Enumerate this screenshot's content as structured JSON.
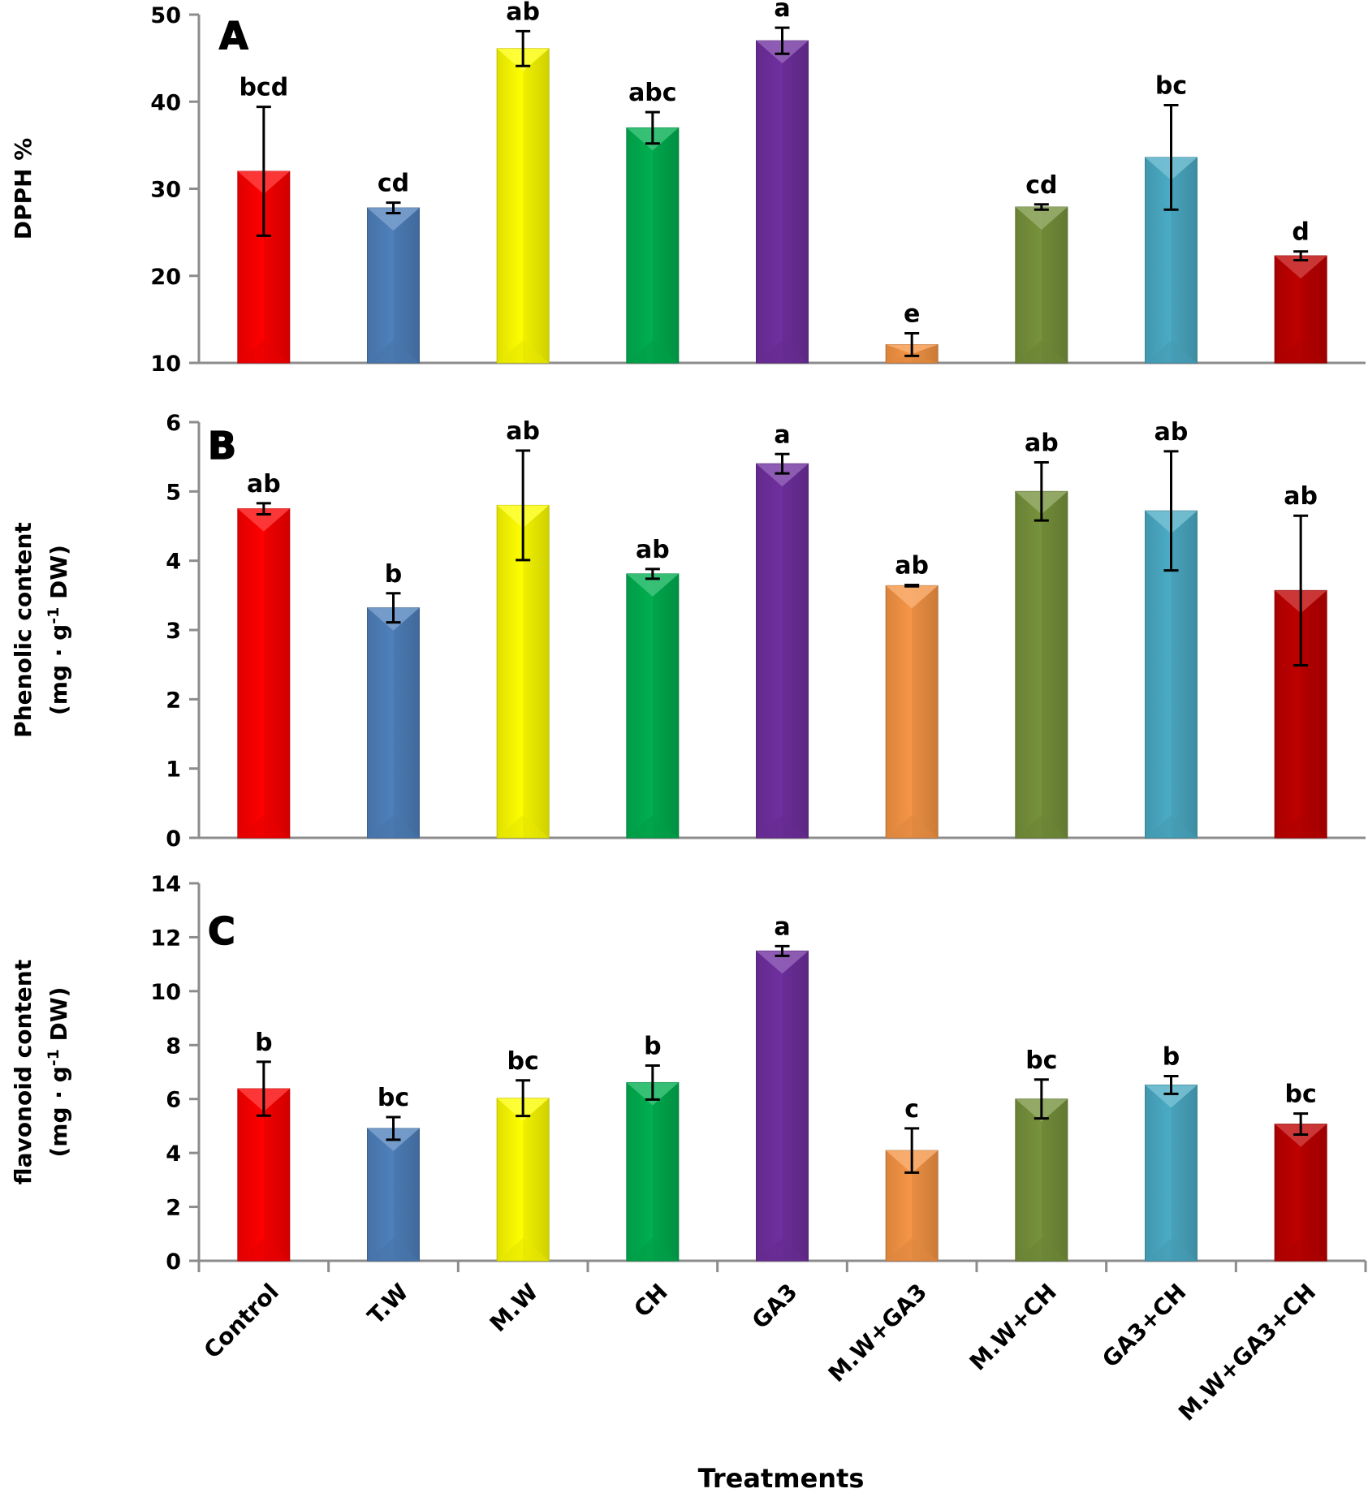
{
  "chart_data": {
    "type": "bar",
    "categories": [
      "Control",
      "T.W",
      "M.W",
      "CH",
      "GA3",
      "M.W+GA3",
      "M.W+CH",
      "GA3+CH",
      "M.W+GA3+CH"
    ],
    "category_colors": [
      "#ff0000",
      "#4f81bd",
      "#ffff00",
      "#00b050",
      "#7030a0",
      "#f79646",
      "#77933c",
      "#4bacc6",
      "#c00000"
    ],
    "xlabel": "Treatments",
    "panels": [
      {
        "letter": "A",
        "ylabel_lines": [
          "DPPH %"
        ],
        "ylim": [
          10,
          50
        ],
        "yticks": [
          10,
          20,
          30,
          40,
          50
        ],
        "grid": false,
        "values": [
          32.0,
          27.8,
          46.1,
          37.0,
          47.0,
          12.1,
          27.9,
          33.6,
          22.3
        ],
        "errors": [
          7.4,
          0.6,
          2.0,
          1.8,
          1.5,
          1.3,
          0.3,
          6.0,
          0.5
        ],
        "significance": [
          "bcd",
          "cd",
          "ab",
          "abc",
          "a",
          "e",
          "cd",
          "bc",
          "d"
        ]
      },
      {
        "letter": "B",
        "ylabel_lines": [
          "Phenolic content",
          "(mg · g⁻¹ DW)"
        ],
        "ylim": [
          0,
          6
        ],
        "yticks": [
          0,
          1,
          2,
          3,
          4,
          5,
          6
        ],
        "grid": false,
        "values": [
          4.75,
          3.32,
          4.8,
          3.81,
          5.4,
          3.64,
          5.0,
          4.72,
          3.57
        ],
        "errors": [
          0.08,
          0.21,
          0.79,
          0.07,
          0.14,
          0.01,
          0.42,
          0.86,
          1.08
        ],
        "significance": [
          "ab",
          "b",
          "ab",
          "ab",
          "a",
          "ab",
          "ab",
          "ab",
          "ab"
        ]
      },
      {
        "letter": "C",
        "ylabel_lines": [
          "flavonoid content",
          "(mg · g⁻¹ DW)"
        ],
        "ylim": [
          0,
          14
        ],
        "yticks": [
          0,
          2,
          4,
          6,
          8,
          10,
          12,
          14
        ],
        "grid": false,
        "values": [
          6.38,
          4.91,
          6.03,
          6.61,
          11.49,
          4.09,
          6.0,
          6.52,
          5.07
        ],
        "errors": [
          1.0,
          0.42,
          0.66,
          0.63,
          0.18,
          0.82,
          0.72,
          0.33,
          0.39
        ],
        "significance": [
          "b",
          "bc",
          "bc",
          "b",
          "a",
          "c",
          "bc",
          "b",
          "bc"
        ]
      }
    ]
  }
}
